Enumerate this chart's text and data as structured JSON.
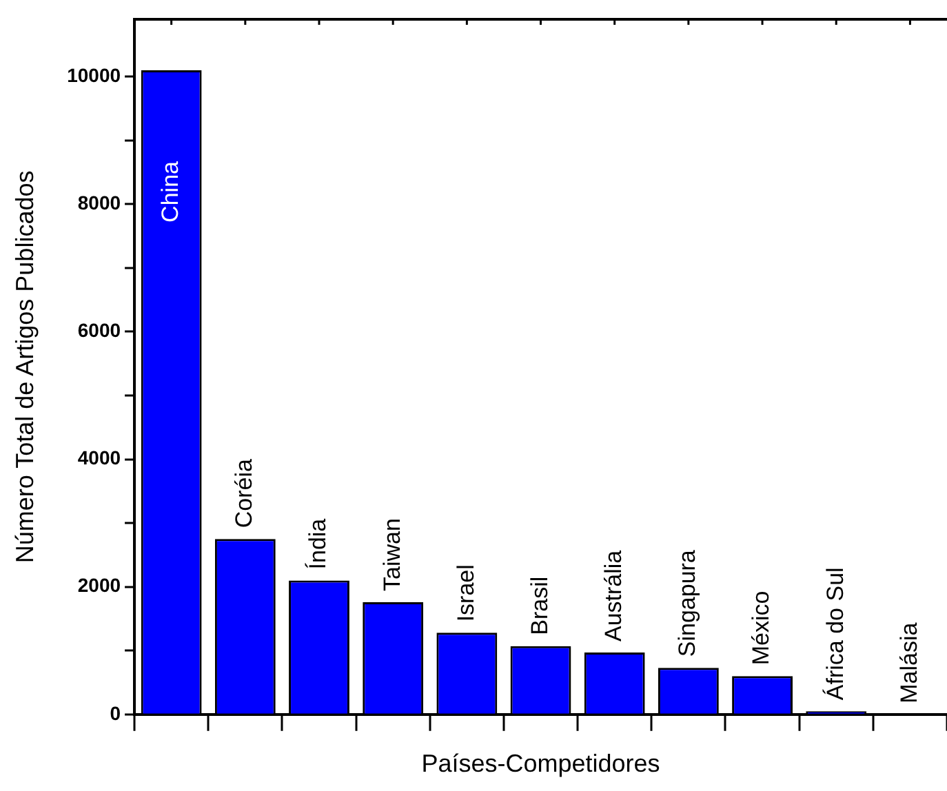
{
  "chart_data": {
    "type": "bar",
    "xlabel": "Países-Competidores",
    "ylabel": "Número Total de Artigos Publicados",
    "categories": [
      "China",
      "Coréia",
      "Índia",
      "Taiwan",
      "Israel",
      "Brasil",
      "Austrália",
      "Singapura",
      "México",
      "África do Sul",
      "Malásia"
    ],
    "values": [
      10100,
      2750,
      2100,
      1760,
      1280,
      1070,
      970,
      730,
      600,
      50,
      null
    ],
    "color": "#0000ff",
    "ylim": [
      0,
      10900
    ],
    "yticks": [
      0,
      {
        "value": 1000,
        "label": null
      },
      2000,
      {
        "value": 3000,
        "label": null
      },
      4000,
      {
        "value": 5000,
        "label": null
      },
      6000,
      {
        "value": 7000,
        "label": null
      },
      8000,
      {
        "value": 9000,
        "label": null
      },
      10000
    ],
    "grid": false,
    "legend": false,
    "tick_labels": "y"
  }
}
